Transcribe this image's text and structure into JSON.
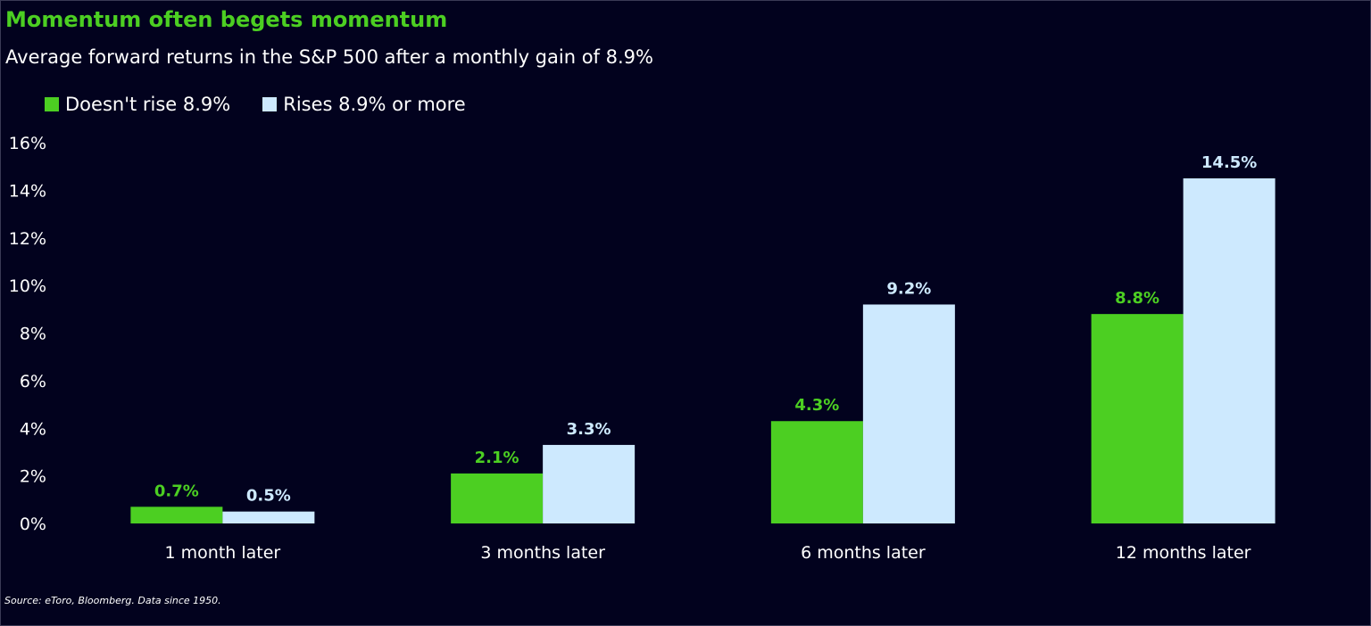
{
  "title": "Momentum often begets momentum",
  "subtitle": "Average forward returns in the S&P 500 after a monthly gain of 8.9%",
  "source": "Source: eToro, Bloomberg. Data since 1950.",
  "colors": {
    "background": "#02021e",
    "series_green": "#4ccf22",
    "series_light": "#cde9fe",
    "text": "#ffffff"
  },
  "chart_data": {
    "type": "bar",
    "title": "Momentum often begets momentum",
    "subtitle": "Average forward returns in the S&P 500 after a monthly gain of 8.9%",
    "xlabel": "",
    "ylabel": "",
    "categories": [
      "1 month later",
      "3 months later",
      "6 months later",
      "12 months later"
    ],
    "series": [
      {
        "name": "Doesn't rise 8.9%",
        "color": "#4ccf22",
        "values": [
          0.7,
          2.1,
          4.3,
          8.8
        ],
        "labels": [
          "0.7%",
          "2.1%",
          "4.3%",
          "8.8%"
        ]
      },
      {
        "name": "Rises 8.9% or more",
        "color": "#cde9fe",
        "values": [
          0.5,
          3.3,
          9.2,
          14.5
        ],
        "labels": [
          "0.5%",
          "3.3%",
          "9.2%",
          "14.5%"
        ]
      }
    ],
    "ylim": [
      0,
      16
    ],
    "yticks": [
      0,
      2,
      4,
      6,
      8,
      10,
      12,
      14,
      16
    ],
    "ytick_labels": [
      "0%",
      "2%",
      "4%",
      "6%",
      "8%",
      "10%",
      "12%",
      "14%",
      "16%"
    ],
    "grid": false,
    "legend_position": "top-left"
  }
}
